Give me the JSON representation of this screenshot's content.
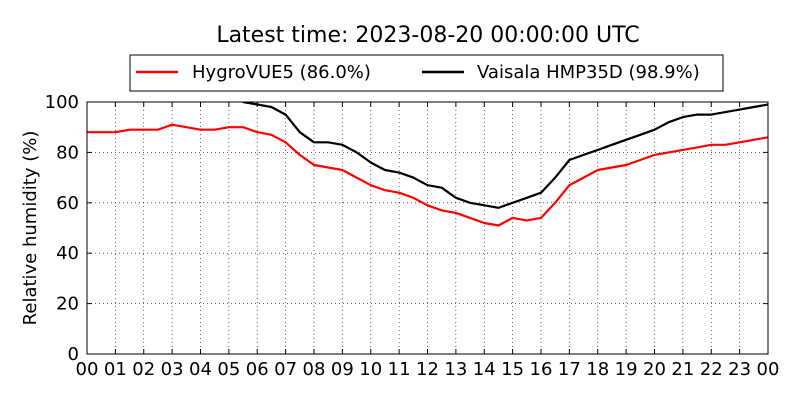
{
  "chart_data": {
    "type": "line",
    "title": "Latest time: 2023-08-20 00:00:00 UTC",
    "xlabel": "",
    "ylabel": "Relative humidity (%)",
    "xlim": [
      0,
      24
    ],
    "ylim": [
      0,
      100
    ],
    "x_ticks": [
      "00",
      "01",
      "02",
      "03",
      "04",
      "05",
      "06",
      "07",
      "08",
      "09",
      "10",
      "11",
      "12",
      "13",
      "14",
      "15",
      "16",
      "17",
      "18",
      "19",
      "20",
      "21",
      "22",
      "23",
      "00"
    ],
    "y_ticks": [
      "0",
      "20",
      "40",
      "60",
      "80",
      "100"
    ],
    "grid": true,
    "legend_position": "top",
    "series": [
      {
        "name": "HygroVUE5 (86.0%)",
        "color": "#ff0000",
        "x": [
          0,
          0.5,
          1,
          1.5,
          2,
          2.5,
          3,
          3.5,
          4,
          4.5,
          5,
          5.5,
          6,
          6.5,
          7,
          7.5,
          8,
          8.5,
          9,
          9.5,
          10,
          10.5,
          11,
          11.5,
          12,
          12.5,
          13,
          13.5,
          14,
          14.5,
          15,
          15.5,
          16,
          16.5,
          17,
          17.5,
          18,
          18.5,
          19,
          19.5,
          20,
          20.5,
          21,
          21.5,
          22,
          22.5,
          23,
          23.5,
          24
        ],
        "y": [
          88,
          88,
          88,
          89,
          89,
          89,
          91,
          90,
          89,
          89,
          90,
          90,
          88,
          87,
          84,
          79,
          75,
          74,
          73,
          70,
          67,
          65,
          64,
          62,
          59,
          57,
          56,
          54,
          52,
          51,
          54,
          53,
          54,
          60,
          67,
          70,
          73,
          74,
          75,
          77,
          79,
          80,
          81,
          82,
          83,
          83,
          84,
          85,
          86
        ]
      },
      {
        "name": "Vaisala HMP35D (98.9%)",
        "color": "#000000",
        "x": [
          5.5,
          6,
          6.5,
          7,
          7.5,
          8,
          8.5,
          9,
          9.5,
          10,
          10.5,
          11,
          11.5,
          12,
          12.5,
          13,
          13.5,
          14,
          14.5,
          15,
          15.5,
          16,
          16.5,
          17,
          17.5,
          18,
          18.5,
          19,
          19.5,
          20,
          20.5,
          21,
          21.5,
          22,
          22.5,
          23,
          23.5,
          24
        ],
        "y": [
          100,
          99,
          98,
          95,
          88,
          84,
          84,
          83,
          80,
          76,
          73,
          72,
          70,
          67,
          66,
          62,
          60,
          59,
          58,
          60,
          62,
          64,
          70,
          77,
          79,
          81,
          83,
          85,
          87,
          89,
          92,
          94,
          95,
          95,
          96,
          97,
          98,
          99
        ]
      }
    ]
  }
}
